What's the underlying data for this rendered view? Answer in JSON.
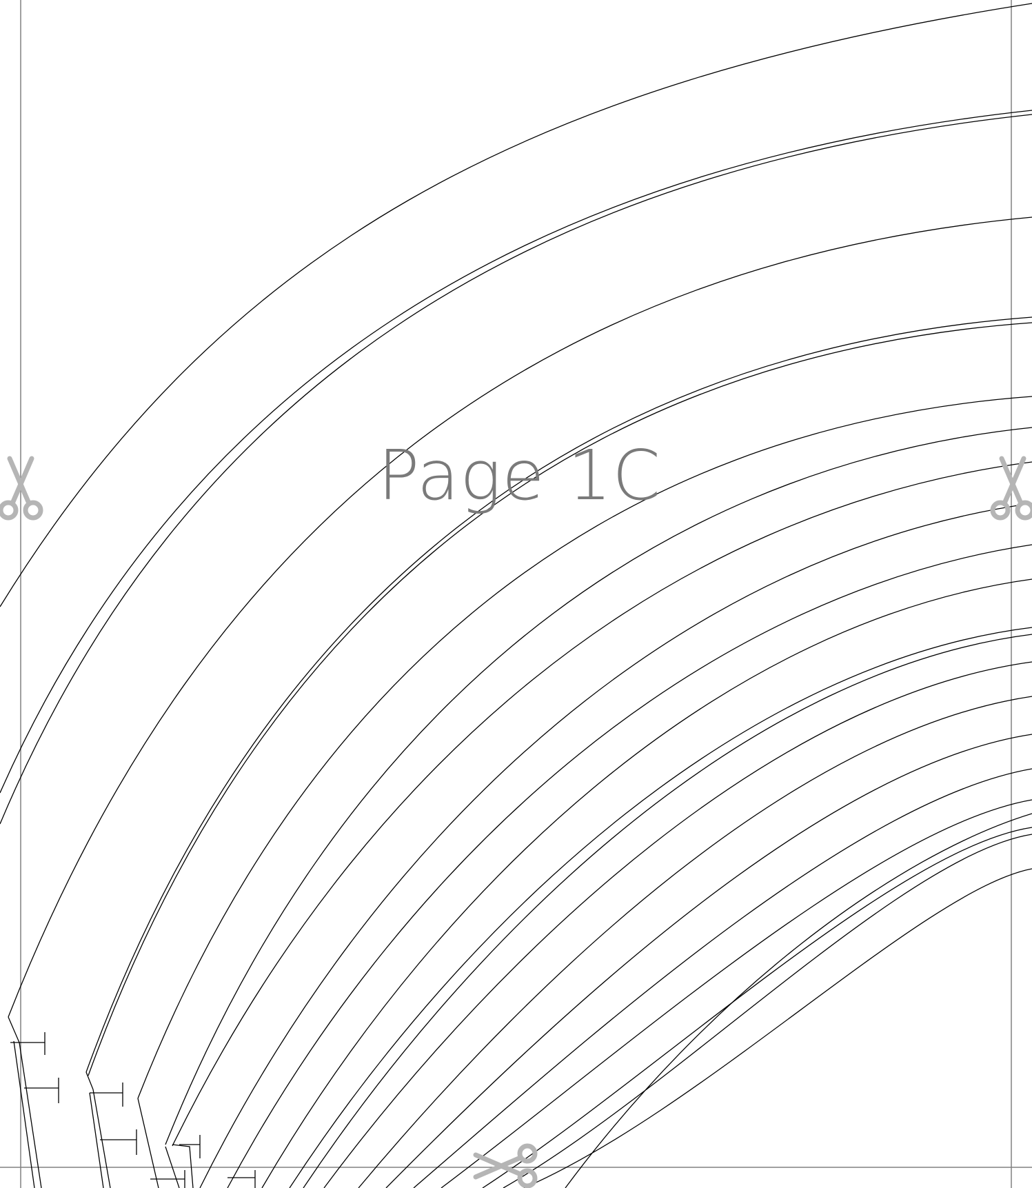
{
  "page": {
    "label": "Page 1C"
  },
  "colors": {
    "background": "#ffffff",
    "pattern_lines": "#000000",
    "guide_lines": "#808080",
    "scissors": "#b5b5b5",
    "label": "#7a7a7a"
  },
  "icons": {
    "cut_markers": [
      "scissors-icon",
      "scissors-icon",
      "scissors-icon"
    ]
  }
}
